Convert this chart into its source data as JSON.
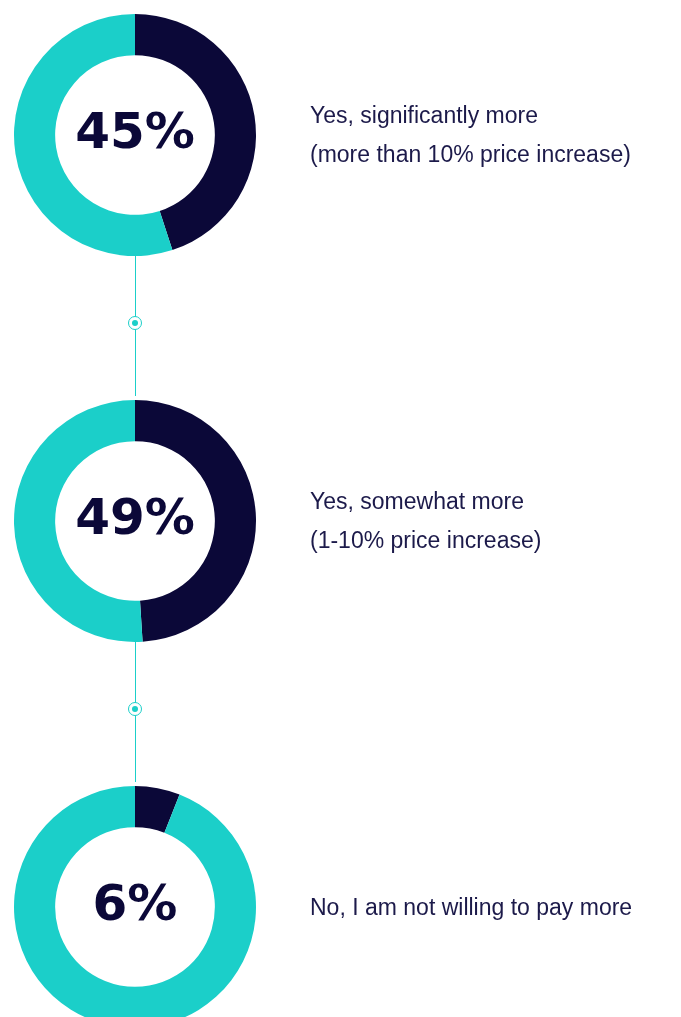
{
  "chart_data": [
    {
      "type": "donut",
      "title": "Yes, significantly more\n(more than 10% price increase)",
      "categories": [
        null,
        null
      ],
      "values": [
        45,
        55
      ],
      "colors": [
        "#0b0838",
        "#1bcfc9"
      ],
      "value_labels": [
        "45%",
        null
      ]
    },
    {
      "type": "donut",
      "title": "Yes, somewhat more\n(1-10% price increase)",
      "categories": [
        null,
        null
      ],
      "values": [
        49,
        51
      ],
      "colors": [
        "#0b0838",
        "#1bcfc9"
      ],
      "value_labels": [
        "49%",
        null
      ]
    },
    {
      "type": "donut",
      "title": "No, I am not willing to pay more",
      "categories": [
        null,
        null
      ],
      "values": [
        6,
        94
      ],
      "colors": [
        "#0b0838",
        "#1bcfc9"
      ],
      "value_labels": [
        "6%",
        null
      ]
    }
  ]
}
